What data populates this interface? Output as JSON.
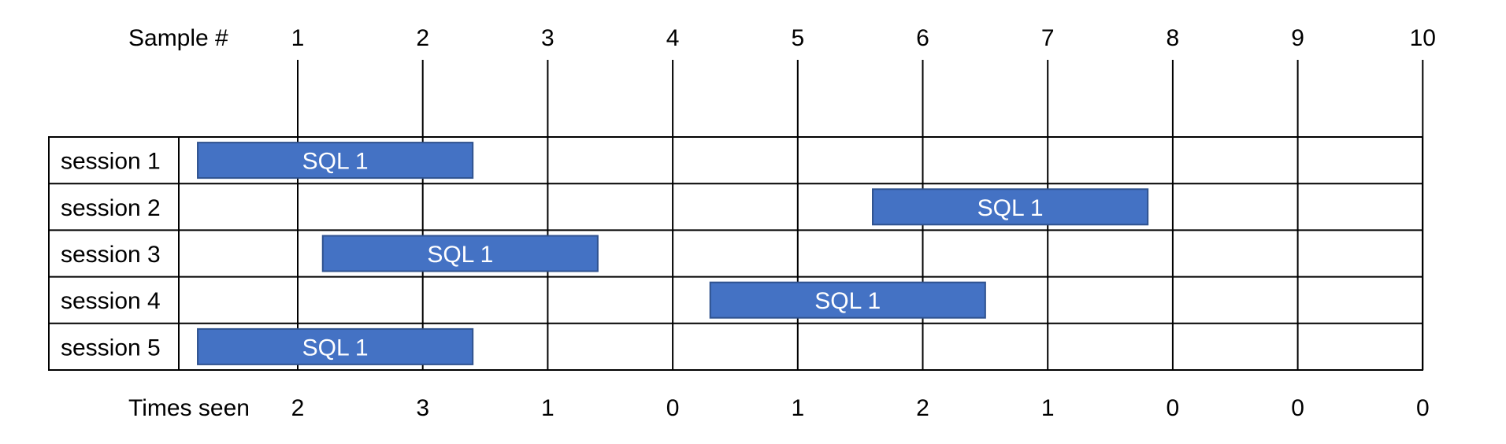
{
  "header": {
    "label": "Sample #",
    "samples": [
      "1",
      "2",
      "3",
      "4",
      "5",
      "6",
      "7",
      "8",
      "9",
      "10"
    ]
  },
  "sessions": [
    {
      "label": "session 1",
      "bar": {
        "label": "SQL 1",
        "start": 0.2,
        "end": 2.4
      }
    },
    {
      "label": "session 2",
      "bar": {
        "label": "SQL 1",
        "start": 5.6,
        "end": 7.8
      }
    },
    {
      "label": "session 3",
      "bar": {
        "label": "SQL 1",
        "start": 1.2,
        "end": 3.4
      }
    },
    {
      "label": "session 4",
      "bar": {
        "label": "SQL 1",
        "start": 4.3,
        "end": 6.5
      }
    },
    {
      "label": "session 5",
      "bar": {
        "label": "SQL 1",
        "start": 0.2,
        "end": 2.4
      }
    }
  ],
  "footer": {
    "label": "Times seen",
    "counts": [
      "2",
      "3",
      "1",
      "0",
      "1",
      "2",
      "1",
      "0",
      "0",
      "0"
    ]
  },
  "colors": {
    "bar_fill": "#4472c4",
    "bar_border": "#2f528f",
    "bar_text": "#ffffff",
    "lines": "#000000",
    "background": "#ffffff"
  }
}
